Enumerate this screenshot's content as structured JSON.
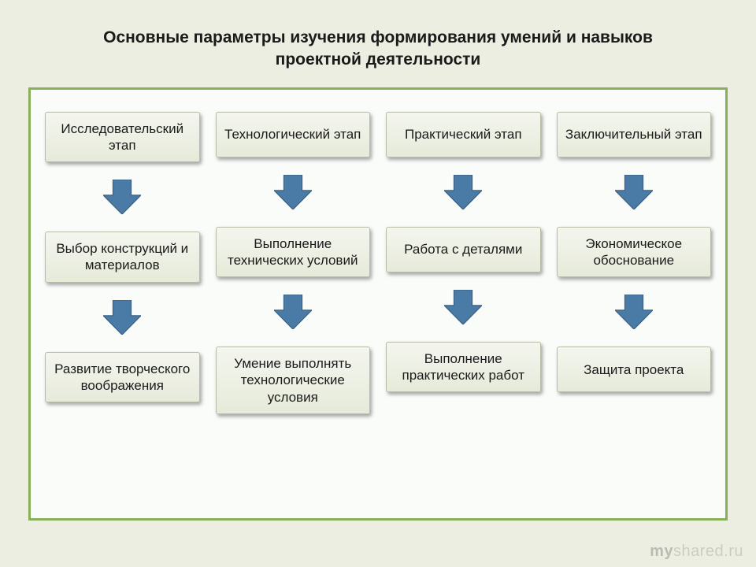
{
  "title_line1": "Основные параметры изучения формирования умений и навыков",
  "title_line2": "проектной деятельности",
  "arrow": {
    "fill": "#4a7ba6",
    "stroke": "#3a5f80",
    "width": 48,
    "height": 44
  },
  "panel": {
    "background": "#fafcfa",
    "border_color": "#8aaf5a"
  },
  "box_style": {
    "bg_top": "#f4f6ef",
    "bg_bottom": "#e6ead9",
    "border": "#b8bda8",
    "fontsize": 17
  },
  "columns": [
    {
      "row1": "Исследовательский этап",
      "row2": "Выбор конструкций и  материалов",
      "row3": "Развитие творческого воображения"
    },
    {
      "row1": "Технологический этап",
      "row2": "Выполнение технических условий",
      "row3": "Умение выполнять технологические условия"
    },
    {
      "row1": "Практический этап",
      "row2": "Работа  с деталями",
      "row3": "Выполнение практических работ"
    },
    {
      "row1": "Заключительный этап",
      "row2": "Экономическое обоснование",
      "row3": "Защита проекта"
    }
  ],
  "watermark": {
    "part1": "my",
    "part2": "shared",
    "part3": ".ru"
  }
}
